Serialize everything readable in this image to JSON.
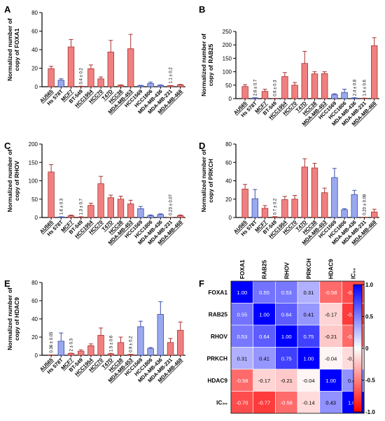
{
  "colors": {
    "red": "#f08080",
    "blue": "#9aa8ee",
    "edge": "#a83232",
    "edge_blue": "#3d4ea8",
    "hm_pos": "#0000ff",
    "hm_neg": "#ff0000"
  },
  "categories": [
    "AU565",
    "Hs 578T",
    "MCF7",
    "BT-549",
    "HCC1954",
    "HCC70",
    "T47D",
    "HCC38",
    "MDA-MB-453",
    "HCC1569",
    "HCC1806",
    "MDA-MB-436",
    "MDA-MB-231",
    "MDA-MB-468"
  ],
  "underlined": [
    true,
    false,
    true,
    false,
    true,
    true,
    true,
    true,
    true,
    false,
    false,
    false,
    false,
    true
  ],
  "chart_data": [
    {
      "panel": "A",
      "type": "bar",
      "ylabel_line1": "Normalized number of",
      "ylabel_line2": "copy of FOXA1",
      "ylim": [
        0,
        80
      ],
      "yticks": [
        "0",
        "20",
        "40",
        "60",
        "80"
      ],
      "values": [
        19.5,
        7,
        43,
        0.4,
        19.5,
        8.5,
        37.5,
        1.5,
        41,
        1.2,
        3.5,
        1.5,
        1.1,
        2
      ],
      "errors": [
        2.5,
        1.5,
        8,
        0.2,
        4,
        2,
        12.5,
        0.5,
        15.5,
        0.3,
        1.5,
        0.5,
        0.2,
        0.5
      ],
      "colors": [
        "red",
        "blue",
        "red",
        "red",
        "red",
        "red",
        "red",
        "red",
        "red",
        "blue",
        "blue",
        "blue",
        "red",
        "red"
      ],
      "labels": [
        "",
        "",
        "",
        "0.4 ± 0.2",
        "",
        "",
        "",
        "",
        "",
        "",
        "",
        "",
        "1.1 ± 0.2",
        ""
      ]
    },
    {
      "panel": "B",
      "type": "bar",
      "ylabel_line1": "Normalized number of",
      "ylabel_line2": "copy of RAB25",
      "ylim": [
        0,
        250
      ],
      "yticks": [
        "0",
        "50",
        "100",
        "150",
        "200",
        "250"
      ],
      "values": [
        45,
        2.6,
        27,
        0.6,
        82,
        50,
        131,
        92,
        93,
        15,
        23,
        2.4,
        1.4,
        197
      ],
      "errors": [
        7,
        0.7,
        8,
        0.3,
        15,
        10,
        45,
        8,
        7,
        3,
        12,
        0.8,
        0.6,
        30
      ],
      "colors": [
        "red",
        "blue",
        "red",
        "red",
        "red",
        "red",
        "red",
        "red",
        "red",
        "blue",
        "blue",
        "blue",
        "red",
        "red"
      ],
      "labels": [
        "",
        "2.6 ± 0.7",
        "",
        "0.6 ± 0.3",
        "",
        "",
        "",
        "",
        "",
        "",
        "",
        "2.4 ± 0.8",
        "1.4 ± 0.6",
        ""
      ]
    },
    {
      "panel": "C",
      "type": "bar",
      "ylabel_line1": "Normalized number of",
      "ylabel_line2": "copy of RHOV",
      "ylim": [
        0,
        200
      ],
      "yticks": [
        "0",
        "50",
        "100",
        "150",
        "200"
      ],
      "values": [
        124,
        1.6,
        4.5,
        1.3,
        33,
        92,
        54,
        50,
        37,
        24,
        5,
        8,
        0.23,
        5
      ],
      "errors": [
        20,
        0.3,
        2,
        0.7,
        6,
        20,
        7,
        8,
        10,
        6,
        2,
        2,
        0.07,
        2
      ],
      "colors": [
        "red",
        "blue",
        "red",
        "red",
        "red",
        "red",
        "red",
        "red",
        "red",
        "blue",
        "blue",
        "blue",
        "red",
        "red"
      ],
      "labels": [
        "",
        "1.6 ± 0.3",
        "",
        "1.3 ± 0.7",
        "",
        "",
        "",
        "",
        "",
        "",
        "",
        "",
        "0.23 ± 0.07",
        ""
      ]
    },
    {
      "panel": "D",
      "type": "bar",
      "ylabel_line1": "Normalized number of",
      "ylabel_line2": "copy of PRKCH",
      "ylim": [
        0,
        80
      ],
      "yticks": [
        "0",
        "20",
        "40",
        "60",
        "80"
      ],
      "values": [
        31,
        20.5,
        10,
        0.7,
        19.5,
        20,
        55,
        54,
        27,
        43.5,
        8.5,
        25,
        0.2,
        6
      ],
      "errors": [
        5,
        10,
        3,
        0.2,
        3.5,
        4,
        9,
        5,
        5,
        10,
        1,
        4.5,
        0.08,
        3
      ],
      "colors": [
        "red",
        "blue",
        "red",
        "red",
        "red",
        "red",
        "red",
        "red",
        "red",
        "blue",
        "blue",
        "blue",
        "red",
        "red"
      ],
      "labels": [
        "",
        "",
        "",
        "0.7 ± 0.2",
        "",
        "",
        "",
        "",
        "",
        "",
        "",
        "",
        "0.20 ± 0.08",
        ""
      ]
    },
    {
      "panel": "E",
      "type": "bar",
      "ylabel_line1": "Normalized number of",
      "ylabel_line2": "copy of HDAC9",
      "ylim": [
        0,
        80
      ],
      "yticks": [
        "0",
        "20",
        "40",
        "60",
        "80"
      ],
      "values": [
        0.36,
        15.5,
        2,
        4.5,
        10.5,
        22,
        1.5,
        14,
        0.9,
        31.5,
        7.5,
        45,
        14,
        27.5
      ],
      "errors": [
        0.05,
        9,
        0.3,
        1.5,
        2,
        8,
        0.6,
        6,
        0.2,
        6,
        1,
        14,
        4.5,
        9
      ],
      "colors": [
        "red",
        "blue",
        "red",
        "red",
        "red",
        "red",
        "red",
        "red",
        "red",
        "blue",
        "blue",
        "blue",
        "red",
        "red"
      ],
      "labels": [
        "0.36 ± 0.05",
        "",
        "2 ± 0.3",
        "",
        "",
        "",
        "1.5 ± 0.6",
        "",
        "0.9 ± 0.2",
        "",
        "",
        "",
        "",
        ""
      ]
    },
    {
      "panel": "F",
      "type": "heatmap",
      "rows": [
        "FOXA1",
        "RAB25",
        "RHOV",
        "PRKCH",
        "HDAC9",
        "IC₅₀"
      ],
      "cols": [
        "FOXA1",
        "RAB25",
        "RHOV",
        "PRKCH",
        "HDAC9",
        "IC₅₀"
      ],
      "values": [
        [
          1.0,
          0.55,
          0.53,
          0.31,
          -0.58,
          -0.7
        ],
        [
          0.55,
          1.0,
          0.64,
          0.41,
          -0.17,
          -0.77
        ],
        [
          0.53,
          0.64,
          1.0,
          0.75,
          -0.21,
          -0.58
        ],
        [
          0.31,
          0.41,
          0.75,
          1.0,
          -0.04,
          -0.14
        ],
        [
          -0.58,
          -0.17,
          -0.21,
          -0.04,
          1.0,
          0.43
        ],
        [
          -0.7,
          -0.77,
          -0.58,
          -0.14,
          0.43,
          1.0
        ]
      ],
      "labels": [
        [
          "1.00",
          "0.55",
          "0.53",
          "0.31",
          "-0.58",
          "-0.70"
        ],
        [
          "0.55",
          "1.00",
          "0.64",
          "0.41",
          "-0.17",
          "-0.77"
        ],
        [
          "0.53",
          "0.64",
          "1.00",
          "0.75",
          "-0.21",
          "-0.58"
        ],
        [
          "0.31",
          "0.41",
          "0.75",
          "1.00",
          "-0.04",
          "-0.14"
        ],
        [
          "-0.58",
          "-0.17",
          "-0.21",
          "-0.04",
          "1.00",
          "0.43"
        ],
        [
          "-0.70",
          "-0.77",
          "-0.58",
          "-0.14",
          "0.43",
          "1.00"
        ]
      ],
      "colorbar": {
        "ticks": [
          "1.0",
          "0.5",
          "0",
          "-0.5",
          "-1.0"
        ],
        "range": [
          -1,
          1
        ]
      }
    }
  ]
}
